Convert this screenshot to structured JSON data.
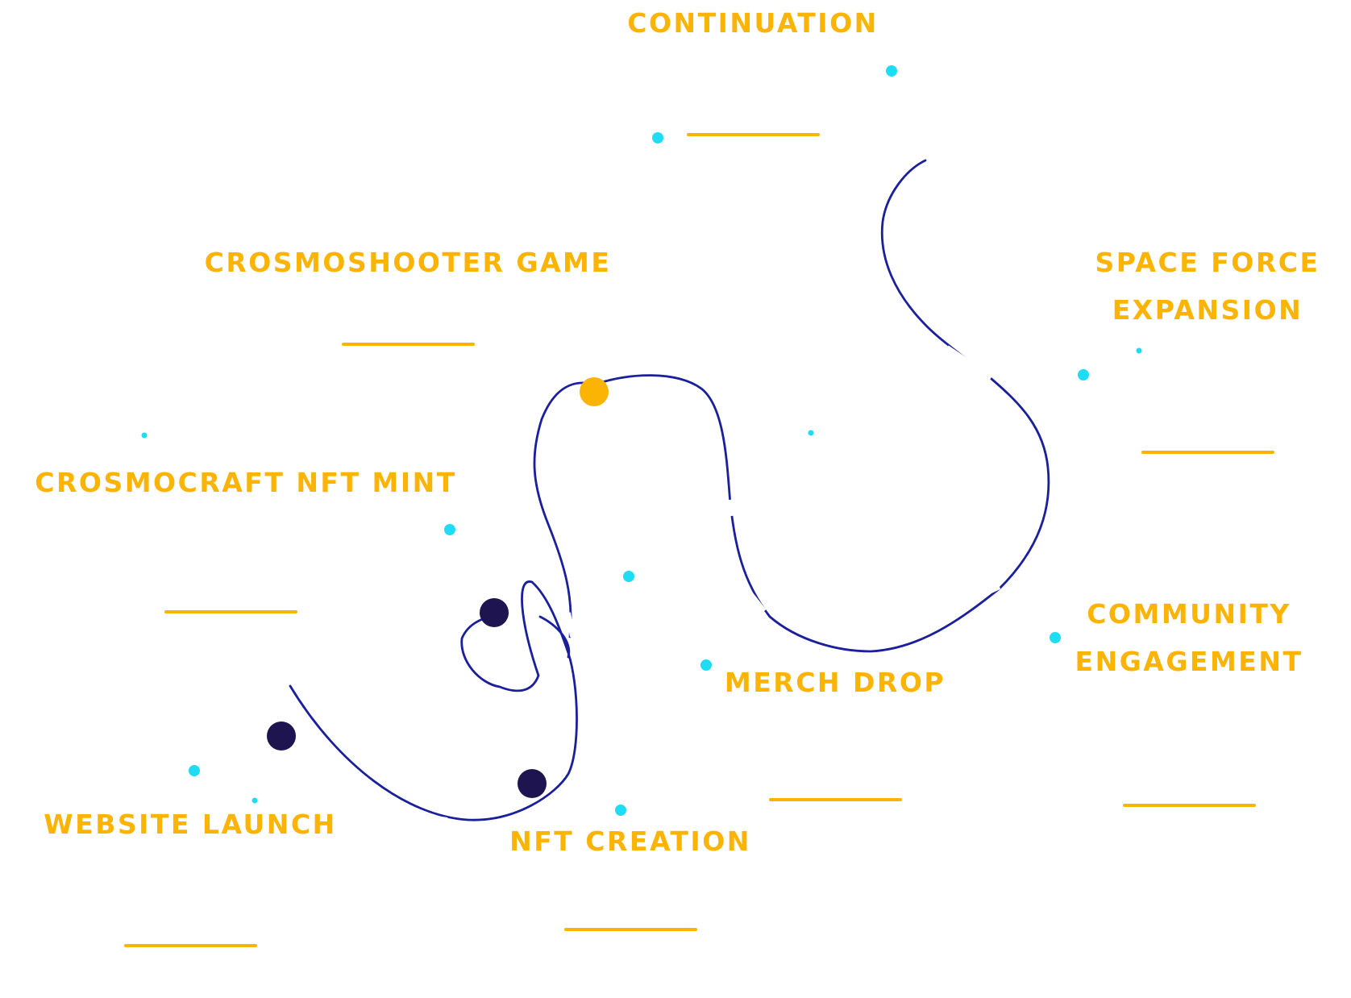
{
  "milestones": {
    "continuation": "CONTINUATION",
    "crosmoshooter_game": "CROSMOSHOOTER GAME",
    "space_force_expansion_line1": "SPACE FORCE",
    "space_force_expansion_line2": "EXPANSION",
    "crosmocraft_nft_mint": "CROSMOCRAFT NFT MINT",
    "community_engagement_line1": "COMMUNITY",
    "community_engagement_line2": "ENGAGEMENT",
    "merch_drop": "MERCH DROP",
    "website_launch": "WEBSITE LAUNCH",
    "nft_creation": "NFT CREATION"
  },
  "colors": {
    "label": "#fbb404",
    "path": "#1a1f9c",
    "node_done": "#1d1450",
    "node_current": "#fbb404",
    "star": "#1fdcf5"
  }
}
